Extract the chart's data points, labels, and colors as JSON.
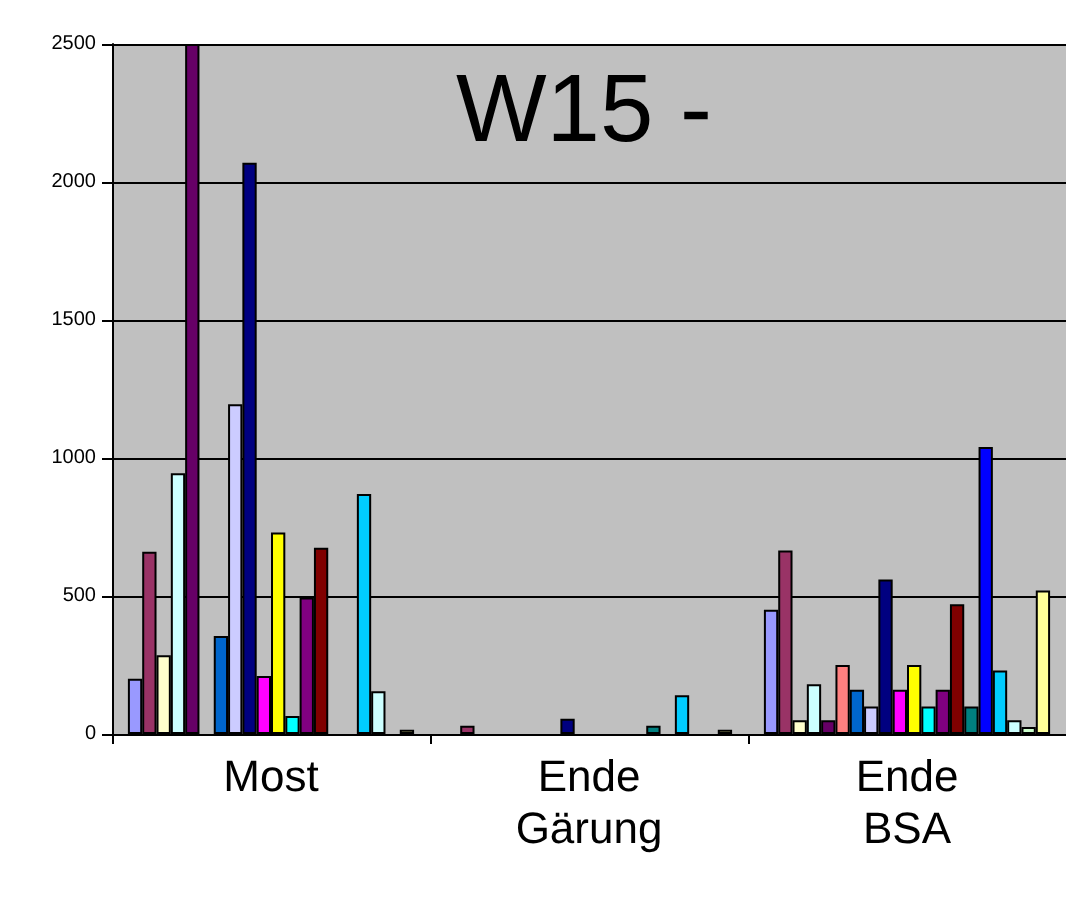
{
  "chart_data": {
    "type": "bar",
    "title": "W15 -",
    "categories": [
      "Most",
      "Ende\nGärung",
      "Ende\nBSA"
    ],
    "ylim": [
      0,
      2500
    ],
    "yticks": [
      0,
      500,
      1000,
      1500,
      2000,
      2500
    ],
    "grid": "y",
    "series": [
      {
        "color": "#9999ff",
        "values": [
          200,
          null,
          450
        ]
      },
      {
        "color": "#993366",
        "values": [
          660,
          30,
          665
        ]
      },
      {
        "color": "#ffffcc",
        "values": [
          285,
          null,
          50
        ]
      },
      {
        "color": "#ccffff",
        "values": [
          945,
          null,
          180
        ]
      },
      {
        "color": "#660066",
        "values": [
          2500,
          null,
          50
        ]
      },
      {
        "color": "#ff8080",
        "values": [
          null,
          null,
          250
        ]
      },
      {
        "color": "#0066cc",
        "values": [
          355,
          null,
          160
        ]
      },
      {
        "color": "#ccccff",
        "values": [
          1195,
          null,
          100
        ]
      },
      {
        "color": "#000080",
        "values": [
          2070,
          55,
          560
        ]
      },
      {
        "color": "#ff00ff",
        "values": [
          210,
          null,
          160
        ]
      },
      {
        "color": "#ffff00",
        "values": [
          730,
          null,
          250
        ]
      },
      {
        "color": "#00ffff",
        "values": [
          65,
          null,
          100
        ]
      },
      {
        "color": "#800080",
        "values": [
          495,
          null,
          160
        ]
      },
      {
        "color": "#800000",
        "values": [
          675,
          null,
          470
        ]
      },
      {
        "color": "#008080",
        "values": [
          null,
          30,
          100
        ]
      },
      {
        "color": "#0000ff",
        "values": [
          null,
          null,
          1040
        ]
      },
      {
        "color": "#00ccff",
        "values": [
          870,
          140,
          230
        ]
      },
      {
        "color": "#ccffff",
        "values": [
          155,
          null,
          50
        ]
      },
      {
        "color": "#ccffcc",
        "values": [
          null,
          null,
          25
        ]
      },
      {
        "color": "#ffff99",
        "values": [
          15,
          15,
          520
        ]
      }
    ]
  }
}
